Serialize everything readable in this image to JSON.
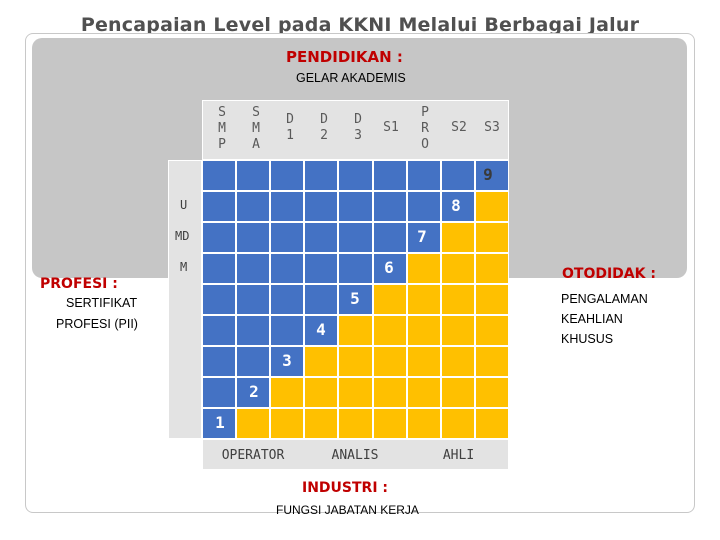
{
  "title": "Pencapaian Level pada KKNI Melalui Berbagai Jalur",
  "top": {
    "heading": "PENDIDIKAN :",
    "subheading": "GELAR AKADEMIS"
  },
  "left": {
    "heading": "PROFESI :",
    "line1": "SERTIFIKAT",
    "line2": "PROFESI (PII)"
  },
  "right": {
    "heading": "OTODIDAK :",
    "line1": "PENGALAMAN",
    "line2": "KEAHLIAN",
    "line3": "KHUSUS"
  },
  "bottom": {
    "heading": "INDUSTRI :",
    "subheading": "FUNGSI JABATAN KERJA"
  },
  "columns": [
    "S\nM\nP",
    "S\nM\nA",
    "D\n1",
    "D\n2",
    "D\n3",
    "S1",
    "P\nR\nO",
    "S2",
    "S3"
  ],
  "row_labels": [
    "U",
    "MD",
    "M"
  ],
  "levels": [
    "9",
    "8",
    "7",
    "6",
    "5",
    "4",
    "3",
    "2",
    "1"
  ],
  "industry_labels": [
    "OPERATOR",
    "ANALIS",
    "AHLI"
  ],
  "colors": {
    "blue": "#4472c4",
    "yellow": "#ffc000",
    "grey": "#e3e3e3",
    "red": "#c00000"
  }
}
